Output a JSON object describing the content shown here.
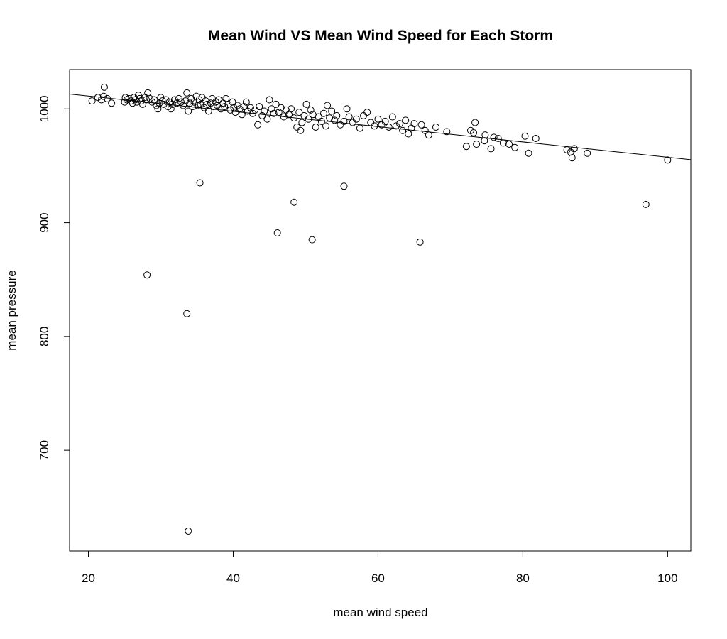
{
  "chart_data": {
    "type": "scatter",
    "title": "Mean Wind VS Mean Wind Speed for Each Storm",
    "xlabel": "mean wind speed",
    "ylabel": "mean pressure",
    "xlim": [
      17.4,
      103.2
    ],
    "ylim": [
      611.5,
      1034.5
    ],
    "xticks": [
      20,
      40,
      60,
      80,
      100
    ],
    "yticks": [
      700,
      800,
      900,
      1000
    ],
    "grid": false,
    "legend": "none",
    "regression_line": {
      "intercept": 1024.7,
      "slope": -0.672
    },
    "points": [
      [
        20.5,
        1007
      ],
      [
        21.3,
        1010
      ],
      [
        21.8,
        1008
      ],
      [
        22.1,
        1011
      ],
      [
        22.2,
        1019
      ],
      [
        22.6,
        1009
      ],
      [
        23.2,
        1005
      ],
      [
        25.0,
        1006
      ],
      [
        25.1,
        1010
      ],
      [
        25.3,
        1008
      ],
      [
        25.6,
        1009
      ],
      [
        25.9,
        1007
      ],
      [
        26.1,
        1005
      ],
      [
        26.3,
        1010
      ],
      [
        26.5,
        1008
      ],
      [
        26.7,
        1006
      ],
      [
        26.9,
        1012
      ],
      [
        27.1,
        1009
      ],
      [
        27.3,
        1007
      ],
      [
        27.5,
        1004
      ],
      [
        27.8,
        1010
      ],
      [
        28.0,
        1008
      ],
      [
        28.2,
        1014
      ],
      [
        28.5,
        1009
      ],
      [
        28.8,
        1006
      ],
      [
        29.1,
        1008
      ],
      [
        29.4,
        1003
      ],
      [
        29.6,
        1000
      ],
      [
        29.8,
        1005
      ],
      [
        30.0,
        1010
      ],
      [
        30.2,
        1007
      ],
      [
        30.4,
        1004
      ],
      [
        30.7,
        1008
      ],
      [
        31.0,
        1002
      ],
      [
        31.2,
        1006
      ],
      [
        31.4,
        1000
      ],
      [
        31.6,
        1004
      ],
      [
        31.9,
        1008
      ],
      [
        32.2,
        1005
      ],
      [
        32.5,
        1009
      ],
      [
        32.8,
        1006
      ],
      [
        33.1,
        1003
      ],
      [
        33.4,
        1007
      ],
      [
        33.6,
        1014
      ],
      [
        33.8,
        998
      ],
      [
        34.0,
        1005
      ],
      [
        34.2,
        1009
      ],
      [
        34.4,
        1002
      ],
      [
        34.6,
        1006
      ],
      [
        34.9,
        1011
      ],
      [
        35.1,
        1003
      ],
      [
        35.3,
        1008
      ],
      [
        35.5,
        1004
      ],
      [
        35.7,
        1010
      ],
      [
        36.0,
        1001
      ],
      [
        36.2,
        1007
      ],
      [
        36.4,
        1004
      ],
      [
        36.6,
        998
      ],
      [
        36.9,
        1005
      ],
      [
        37.1,
        1009
      ],
      [
        37.3,
        1002
      ],
      [
        37.6,
        1006
      ],
      [
        37.8,
        1003
      ],
      [
        38.0,
        1008
      ],
      [
        38.3,
        1000
      ],
      [
        38.6,
        1005
      ],
      [
        38.8,
        1002
      ],
      [
        39.0,
        1009
      ],
      [
        39.3,
        1004
      ],
      [
        39.6,
        999
      ],
      [
        39.9,
        1006
      ],
      [
        40.1,
        1001
      ],
      [
        40.3,
        997
      ],
      [
        40.6,
        1003
      ],
      [
        40.9,
        1000
      ],
      [
        41.2,
        995
      ],
      [
        41.5,
        1002
      ],
      [
        41.8,
        1006
      ],
      [
        42.0,
        998
      ],
      [
        42.4,
        1001
      ],
      [
        42.7,
        996
      ],
      [
        43.0,
        999
      ],
      [
        43.4,
        986
      ],
      [
        43.6,
        1002
      ],
      [
        44.0,
        994
      ],
      [
        44.3,
        998
      ],
      [
        44.7,
        991
      ],
      [
        45.0,
        1008
      ],
      [
        45.3,
        1000
      ],
      [
        45.6,
        996
      ],
      [
        45.9,
        1004
      ],
      [
        46.3,
        997
      ],
      [
        46.6,
        1001
      ],
      [
        47.0,
        993
      ],
      [
        47.3,
        999
      ],
      [
        47.7,
        995
      ],
      [
        48.0,
        1000
      ],
      [
        48.4,
        992
      ],
      [
        48.8,
        984
      ],
      [
        49.1,
        997
      ],
      [
        49.3,
        981
      ],
      [
        49.5,
        988
      ],
      [
        49.8,
        994
      ],
      [
        50.1,
        1004
      ],
      [
        50.4,
        991
      ],
      [
        50.7,
        999
      ],
      [
        51.0,
        995
      ],
      [
        51.4,
        984
      ],
      [
        51.8,
        993
      ],
      [
        52.2,
        989
      ],
      [
        52.5,
        996
      ],
      [
        52.8,
        985
      ],
      [
        53.0,
        1003
      ],
      [
        53.3,
        992
      ],
      [
        53.6,
        998
      ],
      [
        54.0,
        990
      ],
      [
        54.3,
        994
      ],
      [
        54.8,
        986
      ],
      [
        55.3,
        989
      ],
      [
        55.7,
        1000
      ],
      [
        56.0,
        993
      ],
      [
        56.5,
        988
      ],
      [
        57.0,
        991
      ],
      [
        57.5,
        983
      ],
      [
        58.0,
        994
      ],
      [
        58.5,
        997
      ],
      [
        59.0,
        988
      ],
      [
        59.5,
        985
      ],
      [
        60.0,
        991
      ],
      [
        60.5,
        986
      ],
      [
        61.0,
        989
      ],
      [
        61.5,
        984
      ],
      [
        62.0,
        993
      ],
      [
        62.5,
        985
      ],
      [
        63.0,
        987
      ],
      [
        63.4,
        981
      ],
      [
        63.8,
        990
      ],
      [
        64.2,
        978
      ],
      [
        64.6,
        983
      ],
      [
        65.0,
        987
      ],
      [
        66.0,
        986
      ],
      [
        66.5,
        981
      ],
      [
        67.0,
        977
      ],
      [
        68.0,
        984
      ],
      [
        69.5,
        980
      ],
      [
        72.2,
        967
      ],
      [
        72.8,
        981
      ],
      [
        73.2,
        979
      ],
      [
        73.4,
        988
      ],
      [
        73.6,
        969
      ],
      [
        74.7,
        972
      ],
      [
        74.8,
        977
      ],
      [
        75.6,
        965
      ],
      [
        76.0,
        975
      ],
      [
        76.6,
        974
      ],
      [
        77.3,
        970
      ],
      [
        78.1,
        969
      ],
      [
        78.9,
        966
      ],
      [
        80.3,
        976
      ],
      [
        80.8,
        961
      ],
      [
        81.8,
        974
      ],
      [
        86.1,
        964
      ],
      [
        86.6,
        962
      ],
      [
        86.8,
        957
      ],
      [
        87.1,
        965
      ],
      [
        88.9,
        961
      ],
      [
        100.0,
        955
      ],
      [
        28.1,
        854
      ],
      [
        33.6,
        820
      ],
      [
        33.8,
        629
      ],
      [
        35.4,
        935
      ],
      [
        46.1,
        891
      ],
      [
        48.4,
        918
      ],
      [
        50.9,
        885
      ],
      [
        55.3,
        932
      ],
      [
        65.8,
        883
      ],
      [
        97.0,
        916
      ]
    ]
  }
}
